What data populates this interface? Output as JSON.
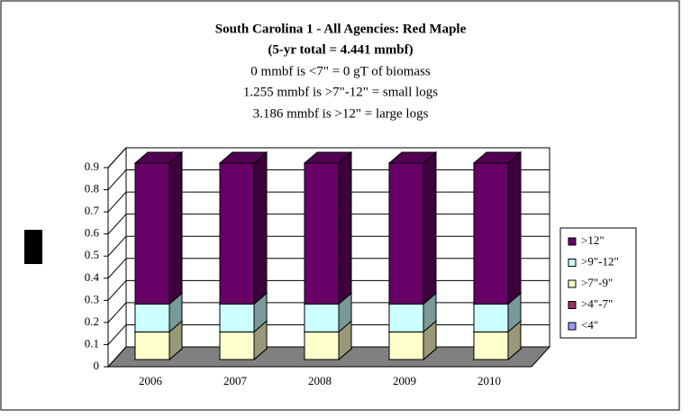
{
  "chart_data": {
    "type": "bar3d_stacked",
    "title": "South Carolina 1 - All Agencies: Red Maple",
    "subtitle": "(5-yr total = 4.441 mmbf)",
    "annotations": [
      "0 mmbf is <7\" = 0 gT of biomass",
      "1.255 mmbf is >7\"-12\" = small logs",
      "3.186 mmbf is >12\" = large logs"
    ],
    "categories": [
      "2006",
      "2007",
      "2008",
      "2009",
      "2010"
    ],
    "series": [
      {
        "name": "<4\"",
        "color": "#9999ff",
        "values": [
          0,
          0,
          0,
          0,
          0
        ]
      },
      {
        "name": ">4\"-7\"",
        "color": "#993366",
        "values": [
          0,
          0,
          0,
          0,
          0
        ]
      },
      {
        "name": ">7\"-9\"",
        "color": "#ffffcc",
        "values": [
          0.125,
          0.125,
          0.125,
          0.125,
          0.125
        ]
      },
      {
        "name": ">9\"-12\"",
        "color": "#ccffff",
        "values": [
          0.126,
          0.126,
          0.126,
          0.126,
          0.126
        ]
      },
      {
        "name": ">12\"",
        "color": "#660066",
        "values": [
          0.637,
          0.637,
          0.637,
          0.637,
          0.637
        ]
      }
    ],
    "ylim": [
      0,
      0.9
    ],
    "yticks": [
      0,
      0.1,
      0.2,
      0.3,
      0.4,
      0.5,
      0.6,
      0.7,
      0.8,
      0.9
    ],
    "grid": true,
    "legend": "right"
  }
}
